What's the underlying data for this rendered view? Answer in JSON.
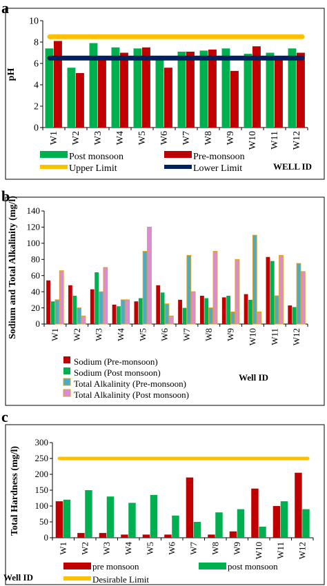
{
  "panels": {
    "a": {
      "letter": "a"
    },
    "b": {
      "letter": "b"
    },
    "c": {
      "letter": "c"
    }
  },
  "chart_data": [
    {
      "id": "a",
      "type": "bar",
      "title": "",
      "xlabel": "WELL ID",
      "ylabel": "pH",
      "ylim": [
        0,
        10
      ],
      "yticks": [
        0,
        2,
        4,
        6,
        8,
        10
      ],
      "grid": false,
      "legend_placement": "bottom",
      "categories": [
        "W1",
        "W2",
        "W3",
        "W4",
        "W5",
        "W6",
        "W7",
        "W8",
        "W9",
        "W10",
        "W11",
        "W12"
      ],
      "series": [
        {
          "name": "Post monsoon",
          "color": "#00b050",
          "values": [
            7.4,
            5.6,
            7.9,
            7.5,
            7.4,
            6.7,
            7.1,
            7.2,
            7.4,
            6.9,
            7.0,
            7.4
          ]
        },
        {
          "name": "Pre-monsoon",
          "color": "#c00000",
          "values": [
            8.1,
            5.1,
            6.5,
            7.0,
            7.5,
            5.6,
            7.1,
            7.3,
            5.3,
            7.6,
            6.6,
            7.0
          ]
        }
      ],
      "lines": [
        {
          "name": "Upper Limit",
          "color": "#ffc000",
          "value": 8.5
        },
        {
          "name": "Lower Limit",
          "color": "#002060",
          "value": 6.5
        }
      ]
    },
    {
      "id": "b",
      "type": "bar",
      "title": "",
      "xlabel": "Well ID",
      "ylabel": "Sodium and Total Alkalinity (mg/l)",
      "ylim": [
        0,
        140
      ],
      "yticks": [
        0,
        20,
        40,
        60,
        80,
        100,
        120,
        140
      ],
      "grid": false,
      "legend_placement": "bottom",
      "categories": [
        "W1",
        "W2",
        "W3",
        "W4",
        "W5",
        "W6",
        "W7",
        "W8",
        "W9",
        "W10",
        "W11",
        "W12"
      ],
      "series": [
        {
          "name": "Sodium (Pre-monsoon)",
          "color": "#c00000",
          "edge": "#c00000",
          "values": [
            54,
            48,
            43,
            24,
            28,
            48,
            30,
            35,
            33,
            37,
            83,
            23
          ]
        },
        {
          "name": "Sodium (Post monsoon)",
          "color": "#00b050",
          "edge": "#00b050",
          "values": [
            28,
            35,
            64,
            22,
            32,
            39,
            20,
            32,
            35,
            30,
            78,
            21
          ]
        },
        {
          "name": "Total Alkalinity (Pre-monsoon)",
          "color": "#4bacc6",
          "edge": "#e3a21a",
          "values": [
            30,
            20,
            40,
            30,
            90,
            25,
            85,
            20,
            15,
            110,
            35,
            75
          ]
        },
        {
          "name": "Total Alkalinity (Post monsoon)",
          "color": "#d98cd9",
          "edge": "#e3a21a",
          "values": [
            66,
            10,
            70,
            30,
            120,
            10,
            40,
            90,
            80,
            15,
            85,
            65
          ]
        }
      ]
    },
    {
      "id": "c",
      "type": "bar",
      "title": "",
      "xlabel": "Well ID",
      "ylabel": "Total Hardness (mg/l)",
      "ylim": [
        0,
        300
      ],
      "yticks": [
        0,
        50,
        100,
        150,
        200,
        250,
        300
      ],
      "grid": false,
      "legend_placement": "bottom",
      "categories": [
        "W1",
        "W2",
        "W3",
        "W4",
        "W5",
        "W6",
        "W7",
        "W8",
        "W9",
        "W10",
        "W11",
        "W12"
      ],
      "series": [
        {
          "name": "pre monsoon",
          "color": "#c00000",
          "values": [
            115,
            15,
            15,
            10,
            10,
            10,
            190,
            10,
            20,
            155,
            100,
            205
          ]
        },
        {
          "name": "post monsoon",
          "color": "#00b050",
          "values": [
            120,
            150,
            130,
            110,
            135,
            70,
            50,
            80,
            90,
            35,
            115,
            90
          ]
        }
      ],
      "lines": [
        {
          "name": "Desirable Limit",
          "color": "#ffc000",
          "value": 250
        }
      ]
    }
  ]
}
